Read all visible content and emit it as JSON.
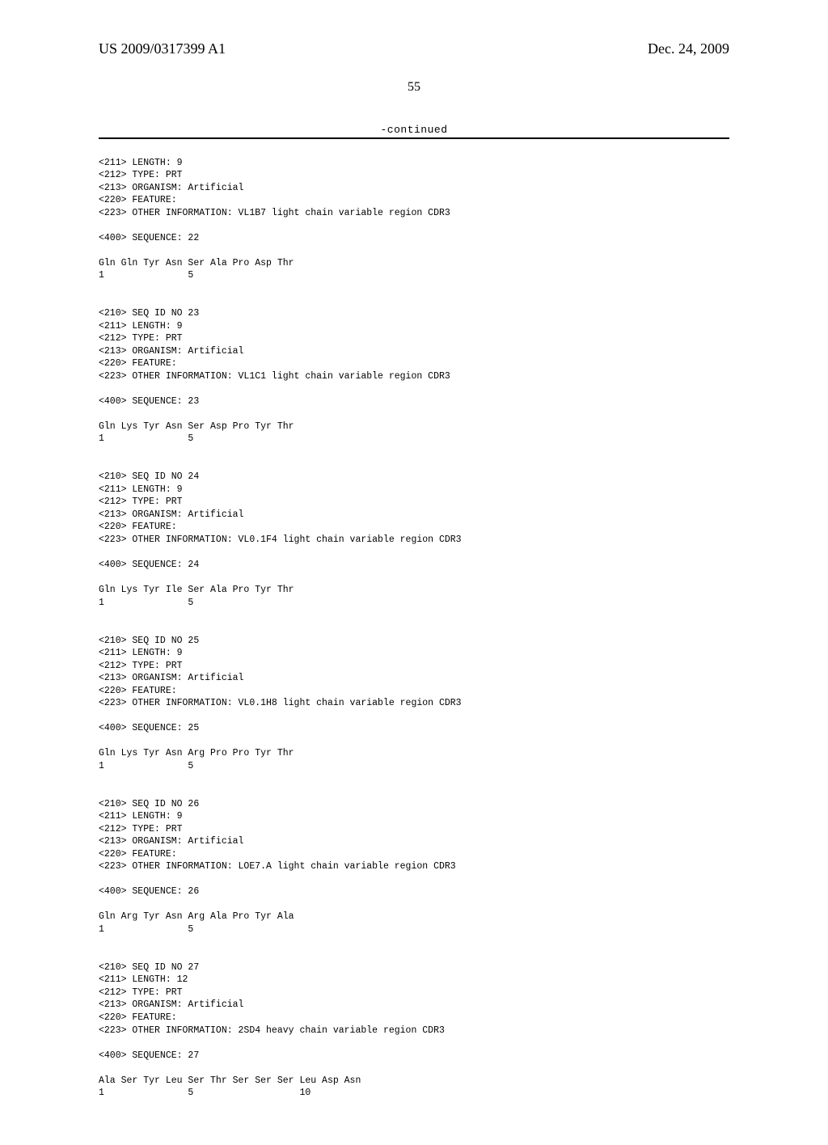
{
  "header": {
    "publication_number": "US 2009/0317399 A1",
    "publication_date": "Dec. 24, 2009"
  },
  "page_number": "55",
  "continued_label": "-continued",
  "entries": [
    {
      "partial_header": [
        "<211> LENGTH: 9",
        "<212> TYPE: PRT",
        "<213> ORGANISM: Artificial",
        "<220> FEATURE:",
        "<223> OTHER INFORMATION: VL1B7 light chain variable region CDR3"
      ],
      "sequence_label": "<400> SEQUENCE: 22",
      "sequence": "Gln Gln Tyr Asn Ser Ala Pro Asp Thr",
      "numbering": "1               5"
    },
    {
      "header_lines": [
        "<210> SEQ ID NO 23",
        "<211> LENGTH: 9",
        "<212> TYPE: PRT",
        "<213> ORGANISM: Artificial",
        "<220> FEATURE:",
        "<223> OTHER INFORMATION: VL1C1 light chain variable region CDR3"
      ],
      "sequence_label": "<400> SEQUENCE: 23",
      "sequence": "Gln Lys Tyr Asn Ser Asp Pro Tyr Thr",
      "numbering": "1               5"
    },
    {
      "header_lines": [
        "<210> SEQ ID NO 24",
        "<211> LENGTH: 9",
        "<212> TYPE: PRT",
        "<213> ORGANISM: Artificial",
        "<220> FEATURE:",
        "<223> OTHER INFORMATION: VL0.1F4 light chain variable region CDR3"
      ],
      "sequence_label": "<400> SEQUENCE: 24",
      "sequence": "Gln Lys Tyr Ile Ser Ala Pro Tyr Thr",
      "numbering": "1               5"
    },
    {
      "header_lines": [
        "<210> SEQ ID NO 25",
        "<211> LENGTH: 9",
        "<212> TYPE: PRT",
        "<213> ORGANISM: Artificial",
        "<220> FEATURE:",
        "<223> OTHER INFORMATION: VL0.1H8 light chain variable region CDR3"
      ],
      "sequence_label": "<400> SEQUENCE: 25",
      "sequence": "Gln Lys Tyr Asn Arg Pro Pro Tyr Thr",
      "numbering": "1               5"
    },
    {
      "header_lines": [
        "<210> SEQ ID NO 26",
        "<211> LENGTH: 9",
        "<212> TYPE: PRT",
        "<213> ORGANISM: Artificial",
        "<220> FEATURE:",
        "<223> OTHER INFORMATION: LOE7.A light chain variable region CDR3"
      ],
      "sequence_label": "<400> SEQUENCE: 26",
      "sequence": "Gln Arg Tyr Asn Arg Ala Pro Tyr Ala",
      "numbering": "1               5"
    },
    {
      "header_lines": [
        "<210> SEQ ID NO 27",
        "<211> LENGTH: 12",
        "<212> TYPE: PRT",
        "<213> ORGANISM: Artificial",
        "<220> FEATURE:",
        "<223> OTHER INFORMATION: 2SD4 heavy chain variable region CDR3"
      ],
      "sequence_label": "<400> SEQUENCE: 27",
      "sequence": "Ala Ser Tyr Leu Ser Thr Ser Ser Ser Leu Asp Asn",
      "numbering": "1               5                   10"
    }
  ]
}
